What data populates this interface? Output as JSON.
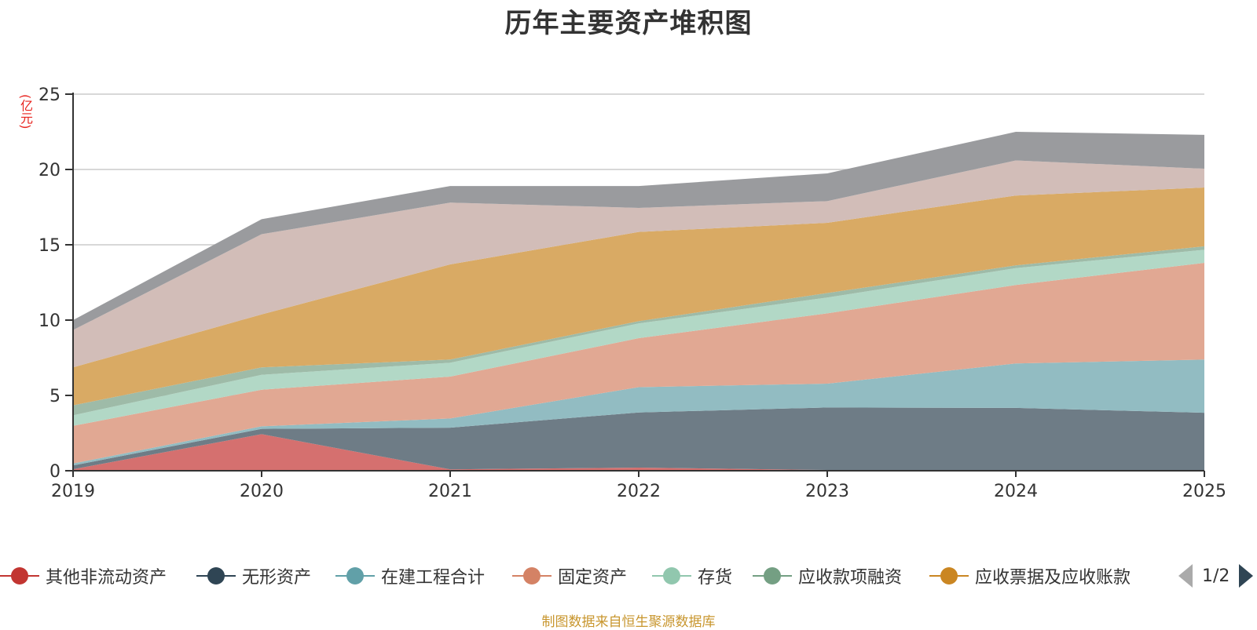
{
  "chart_data": {
    "type": "area",
    "stacked": true,
    "title": "历年主要资产堆积图",
    "ylabel": "(亿元)",
    "xlabel": "",
    "x": [
      "2019",
      "2020",
      "2021",
      "2022",
      "2023",
      "2024",
      "2025"
    ],
    "ylim": [
      0,
      25
    ],
    "yticks": [
      0,
      5,
      10,
      15,
      20,
      25
    ],
    "grid": true,
    "legend_position": "bottom",
    "series": [
      {
        "name": "其他非流动资产",
        "color": "#c23531",
        "fill": "#d5706f",
        "values": [
          0.1,
          2.43,
          0.09,
          0.21,
          0.05,
          0.05,
          0.02
        ]
      },
      {
        "name": "无形资产",
        "color": "#2f4554",
        "fill": "#6e7c86",
        "values": [
          0.25,
          0.35,
          2.77,
          3.66,
          4.15,
          4.12,
          3.83
        ]
      },
      {
        "name": "在建工程合计",
        "color": "#61a0a8",
        "fill": "#92bcc2",
        "values": [
          0.13,
          0.17,
          0.61,
          1.68,
          1.58,
          2.95,
          3.53
        ]
      },
      {
        "name": "固定资产",
        "color": "#d48265",
        "fill": "#e1a893",
        "values": [
          2.5,
          2.43,
          2.78,
          3.25,
          4.67,
          5.21,
          6.42
        ]
      },
      {
        "name": "存货",
        "color": "#91c7ae",
        "fill": "#b2d8c6",
        "values": [
          0.7,
          0.99,
          0.92,
          0.98,
          1.05,
          1.12,
          0.87
        ]
      },
      {
        "name": "应收款项融资",
        "color": "#749f83",
        "fill": "#9ebba8",
        "values": [
          0.66,
          0.49,
          0.21,
          0.15,
          0.3,
          0.18,
          0.23
        ]
      },
      {
        "name": "应收票据及应收账款",
        "color": "#ca8622",
        "fill": "#d9aa64",
        "values": [
          2.52,
          3.52,
          6.32,
          5.92,
          4.66,
          4.64,
          3.9
        ]
      },
      {
        "name": "",
        "color": "#bda29a",
        "fill": "#d2bdb8",
        "values": [
          2.48,
          5.32,
          4.1,
          1.6,
          1.44,
          2.33,
          1.25
        ],
        "legend_page": 2
      },
      {
        "name": "",
        "color": "#6e7074",
        "fill": "#9a9b9e",
        "values": [
          0.66,
          1.0,
          1.1,
          1.45,
          1.84,
          1.9,
          2.25
        ],
        "legend_page": 2
      }
    ]
  },
  "legend": {
    "page_indicator": "1/2",
    "prev_icon": "triangle-left",
    "next_icon": "triangle-right"
  },
  "footer": {
    "source": "制图数据来自恒生聚源数据库"
  }
}
